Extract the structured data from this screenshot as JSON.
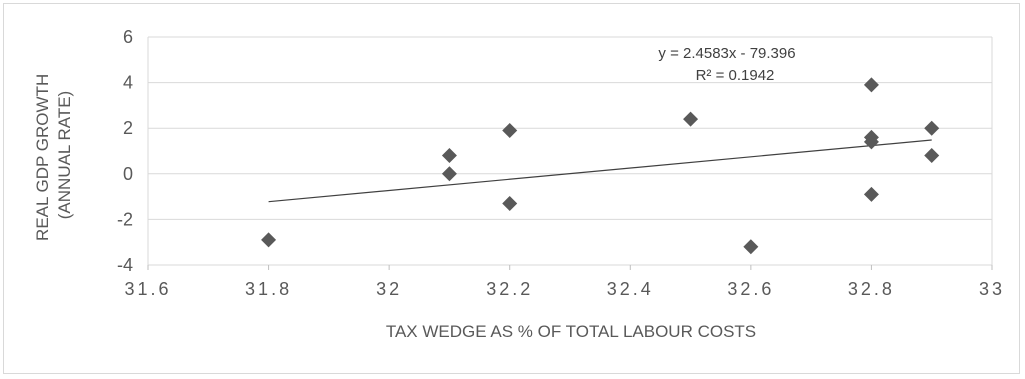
{
  "chart_data": {
    "type": "scatter",
    "title": "",
    "xlabel": "TAX WEDGE  AS % OF TOTAL LABOUR COSTS",
    "ylabel_lines": [
      "REAL GDP GROWTH",
      "(ANNUAL RATE)"
    ],
    "xlim": [
      31.6,
      33
    ],
    "ylim": [
      -4,
      6
    ],
    "x_ticks": [
      31.6,
      31.8,
      32,
      32.2,
      32.4,
      32.6,
      32.8,
      33
    ],
    "x_tick_labels": [
      "31.6",
      "31.8",
      "32",
      "32.2",
      "32.4",
      "32.6",
      "32.8",
      "33"
    ],
    "y_ticks": [
      -4,
      -2,
      0,
      2,
      4,
      6
    ],
    "y_tick_labels": [
      "-4",
      "-2",
      "0",
      "2",
      "4",
      "6"
    ],
    "grid": "horizontal",
    "points": [
      {
        "x": 31.8,
        "y": -2.9
      },
      {
        "x": 32.1,
        "y": 0.8
      },
      {
        "x": 32.1,
        "y": 0.0
      },
      {
        "x": 32.2,
        "y": 1.9
      },
      {
        "x": 32.2,
        "y": -1.3
      },
      {
        "x": 32.5,
        "y": 2.4
      },
      {
        "x": 32.6,
        "y": -3.2
      },
      {
        "x": 32.8,
        "y": 3.9
      },
      {
        "x": 32.8,
        "y": 1.6
      },
      {
        "x": 32.8,
        "y": 1.4
      },
      {
        "x": 32.8,
        "y": -0.9
      },
      {
        "x": 32.9,
        "y": 2.0
      },
      {
        "x": 32.9,
        "y": 0.8
      }
    ],
    "trendline": {
      "slope": 2.4583,
      "intercept": -79.396,
      "x_range": [
        31.8,
        32.9
      ],
      "equation_label": "y = 2.4583x - 79.396",
      "r2_label": "R² = 0.1942"
    },
    "colors": {
      "marker": "#595959",
      "trendline": "#404040",
      "grid": "#d9d9d9",
      "axis": "#bfbfbf"
    },
    "marker_shape": "diamond"
  }
}
